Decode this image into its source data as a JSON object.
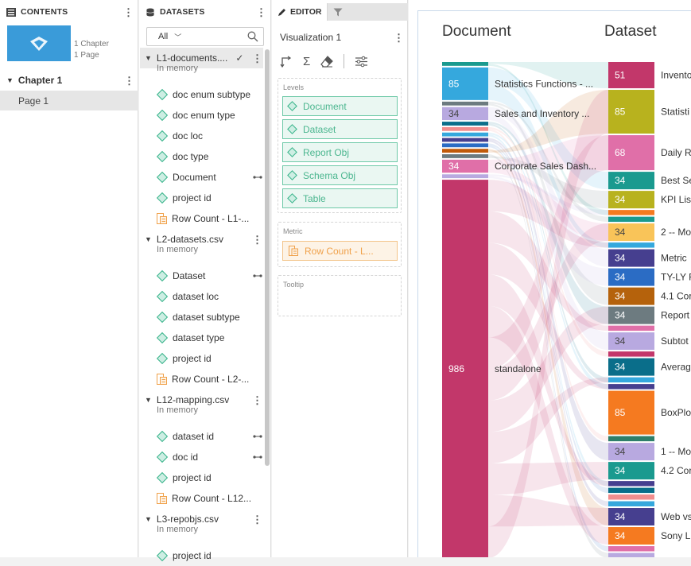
{
  "contents": {
    "title": "CONTENTS",
    "meta_chapters": "1 Chapter",
    "meta_pages": "1 Page",
    "chapter": "Chapter 1",
    "page": "Page 1"
  },
  "datasets": {
    "title": "DATASETS",
    "filter": "All",
    "rows": [
      {
        "type": "dataset",
        "label": "L1-documents....",
        "selected": true
      },
      {
        "type": "sub",
        "label": "In memory"
      },
      {
        "type": "attr",
        "label": "doc enum subtype"
      },
      {
        "type": "attr",
        "label": "doc enum type"
      },
      {
        "type": "attr",
        "label": "doc loc"
      },
      {
        "type": "attr",
        "label": "doc type"
      },
      {
        "type": "attr",
        "label": "Document",
        "link": true
      },
      {
        "type": "attr",
        "label": "project id"
      },
      {
        "type": "metric",
        "label": "Row Count - L1-..."
      },
      {
        "type": "dataset",
        "label": "L2-datasets.csv"
      },
      {
        "type": "sub",
        "label": "In memory"
      },
      {
        "type": "attr",
        "label": "Dataset",
        "link": true
      },
      {
        "type": "attr",
        "label": "dataset loc"
      },
      {
        "type": "attr",
        "label": "dataset subtype"
      },
      {
        "type": "attr",
        "label": "dataset type"
      },
      {
        "type": "attr",
        "label": "project id"
      },
      {
        "type": "metric",
        "label": "Row Count - L2-..."
      },
      {
        "type": "dataset",
        "label": "L12-mapping.csv"
      },
      {
        "type": "sub",
        "label": "In memory"
      },
      {
        "type": "attr",
        "label": "dataset id",
        "link": true
      },
      {
        "type": "attr",
        "label": "doc id",
        "link": true
      },
      {
        "type": "attr",
        "label": "project id"
      },
      {
        "type": "metric",
        "label": "Row Count - L12..."
      },
      {
        "type": "dataset",
        "label": "L3-repobjs.csv"
      },
      {
        "type": "sub",
        "label": "In memory"
      },
      {
        "type": "attr",
        "label": "project id"
      }
    ]
  },
  "editor": {
    "tab_label": "EDITOR",
    "vis_title": "Visualization 1",
    "levels_label": "Levels",
    "levels": [
      "Document",
      "Dataset",
      "Report Obj",
      "Schema Obj",
      "Table"
    ],
    "metric_label": "Metric",
    "metric": "Row Count - L...",
    "tooltip_label": "Tooltip"
  },
  "chart_data": {
    "type": "sankey",
    "levels": [
      "Document",
      "Dataset"
    ],
    "document_nodes": [
      {
        "label": "",
        "value": null,
        "color": "#1a9a8f"
      },
      {
        "label": "Statistics Functions - ...",
        "value": 85,
        "color": "#35a8dd"
      },
      {
        "label": "",
        "value": null,
        "color": "#6d7b80"
      },
      {
        "label": "Sales and Inventory ...",
        "value": 34,
        "color": "#b8a9e0"
      },
      {
        "label": "",
        "value": null,
        "color": "#0a6e8a"
      },
      {
        "label": "",
        "value": null,
        "color": "#f28e8e"
      },
      {
        "label": "",
        "value": null,
        "color": "#35a8dd"
      },
      {
        "label": "",
        "value": null,
        "color": "#463f8f"
      },
      {
        "label": "",
        "value": null,
        "color": "#2b6cc4"
      },
      {
        "label": "",
        "value": null,
        "color": "#c15a0a"
      },
      {
        "label": "",
        "value": null,
        "color": "#6d7b80"
      },
      {
        "label": "Corporate Sales Dash...",
        "value": 34,
        "color": "#e06fa8"
      },
      {
        "label": "",
        "value": null,
        "color": "#b8a9e0"
      },
      {
        "label": "standalone",
        "value": 986,
        "color": "#c2376a"
      }
    ],
    "dataset_nodes": [
      {
        "label": "Invento",
        "value": 51,
        "color": "#c2376a"
      },
      {
        "label": "Statisti",
        "value": 85,
        "color": "#b8b21e"
      },
      {
        "label": "Daily R",
        "value": 68,
        "color": "#e06fa8"
      },
      {
        "label": "Best Se",
        "value": 34,
        "color": "#1a9a8f"
      },
      {
        "label": "KPI Lis",
        "value": 34,
        "color": "#b8b21e"
      },
      {
        "label": "",
        "value": null,
        "color": "#f57a20"
      },
      {
        "label": "",
        "value": null,
        "color": "#1a9a8f"
      },
      {
        "label": "2 -- Mo",
        "value": 34,
        "color": "#f9c459"
      },
      {
        "label": "",
        "value": null,
        "color": "#35a8dd"
      },
      {
        "label": "Metric",
        "value": 34,
        "color": "#463f8f"
      },
      {
        "label": "TY-LY F",
        "value": 34,
        "color": "#2b6cc4"
      },
      {
        "label": "4.1 Cor",
        "value": 34,
        "color": "#b5620c"
      },
      {
        "label": "Report",
        "value": 34,
        "color": "#6d7b80"
      },
      {
        "label": "",
        "value": null,
        "color": "#e06fa8"
      },
      {
        "label": "Subtot",
        "value": 34,
        "color": "#b8a9e0"
      },
      {
        "label": "",
        "value": null,
        "color": "#c2376a"
      },
      {
        "label": "Averag",
        "value": 34,
        "color": "#0a6e8a"
      },
      {
        "label": "",
        "value": null,
        "color": "#35a8dd"
      },
      {
        "label": "",
        "value": null,
        "color": "#463f8f"
      },
      {
        "label": "BoxPlo",
        "value": 85,
        "color": "#f57a20"
      },
      {
        "label": "",
        "value": null,
        "color": "#2e7f6a"
      },
      {
        "label": "1 -- Mo",
        "value": 34,
        "color": "#b8a9e0"
      },
      {
        "label": "4.2 Cor",
        "value": 34,
        "color": "#1a9a8f"
      },
      {
        "label": "",
        "value": null,
        "color": "#463f8f"
      },
      {
        "label": "",
        "value": null,
        "color": "#0a6e8a"
      },
      {
        "label": "",
        "value": null,
        "color": "#f28e8e"
      },
      {
        "label": "",
        "value": null,
        "color": "#35a8dd"
      },
      {
        "label": "Web vs",
        "value": 34,
        "color": "#463f8f"
      },
      {
        "label": "Sony L",
        "value": 34,
        "color": "#f57a20"
      },
      {
        "label": "",
        "value": null,
        "color": "#e06fa8"
      },
      {
        "label": "",
        "value": null,
        "color": "#b8a9e0"
      }
    ]
  }
}
